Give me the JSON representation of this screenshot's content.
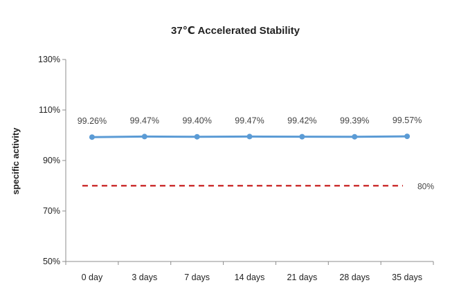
{
  "chart_data": {
    "type": "line",
    "title": "37℃ Accelerated Stability",
    "xlabel": "",
    "ylabel": "specific activity",
    "categories": [
      "0 day",
      "3 days",
      "7 days",
      "14 days",
      "21 days",
      "28 days",
      "35 days"
    ],
    "series": [
      {
        "values": [
          99.26,
          99.47,
          99.4,
          99.47,
          99.42,
          99.39,
          99.57
        ],
        "labels": [
          "99.26%",
          "99.47%",
          "99.40%",
          "99.47%",
          "99.42%",
          "99.39%",
          "99.57%"
        ],
        "color": "#5b9bd5"
      }
    ],
    "reference_line": {
      "value": 80,
      "label": "80%",
      "color": "#c00000",
      "style": "dashed"
    },
    "ylim": [
      50,
      130
    ],
    "yticks": [
      50,
      70,
      90,
      110,
      130
    ],
    "ytick_labels": [
      "50%",
      "70%",
      "90%",
      "110%",
      "130%"
    ],
    "grid": false,
    "legend": "none"
  }
}
